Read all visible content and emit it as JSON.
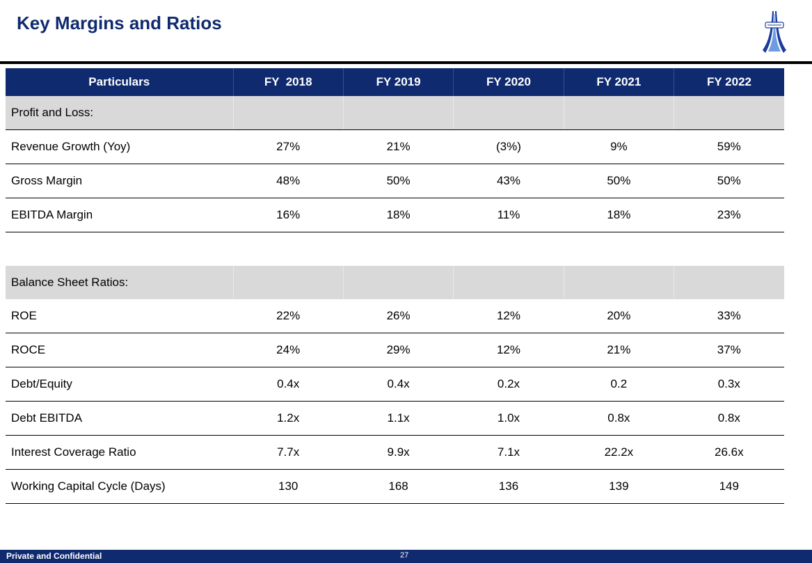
{
  "title": "Key Margins and Ratios",
  "colors": {
    "navy": "#0f2a6e",
    "section_gray": "#d9d9d9"
  },
  "logo": {
    "icon": "company-logo-icon"
  },
  "table": {
    "headers": [
      "Particulars",
      "FY  2018",
      "FY 2019",
      "FY 2020",
      "FY 2021",
      "FY 2022"
    ],
    "section1": {
      "label": "Profit and Loss:",
      "rows": [
        {
          "label": "Revenue Growth (Yoy)",
          "values": [
            "27%",
            "21%",
            "(3%)",
            "9%",
            "59%"
          ]
        },
        {
          "label": "Gross Margin",
          "values": [
            "48%",
            "50%",
            "43%",
            "50%",
            "50%"
          ]
        },
        {
          "label": "EBITDA Margin",
          "values": [
            "16%",
            "18%",
            "11%",
            "18%",
            "23%"
          ]
        }
      ]
    },
    "section2": {
      "label": "Balance Sheet Ratios:",
      "rows": [
        {
          "label": "ROE",
          "values": [
            "22%",
            "26%",
            "12%",
            "20%",
            "33%"
          ]
        },
        {
          "label": "ROCE",
          "values": [
            "24%",
            "29%",
            "12%",
            "21%",
            "37%"
          ]
        },
        {
          "label": "Debt/Equity",
          "values": [
            "0.4x",
            "0.4x",
            "0.2x",
            "0.2",
            "0.3x"
          ]
        },
        {
          "label": "Debt EBITDA",
          "values": [
            "1.2x",
            "1.1x",
            "1.0x",
            "0.8x",
            "0.8x"
          ]
        },
        {
          "label": "Interest Coverage Ratio",
          "values": [
            "7.7x",
            "9.9x",
            "7.1x",
            "22.2x",
            "26.6x"
          ]
        },
        {
          "label": "Working Capital Cycle (Days)",
          "values": [
            "130",
            "168",
            "136",
            "139",
            "149"
          ]
        }
      ]
    }
  },
  "footer": {
    "confidential": "Private and Confidential",
    "page_number": "27"
  }
}
